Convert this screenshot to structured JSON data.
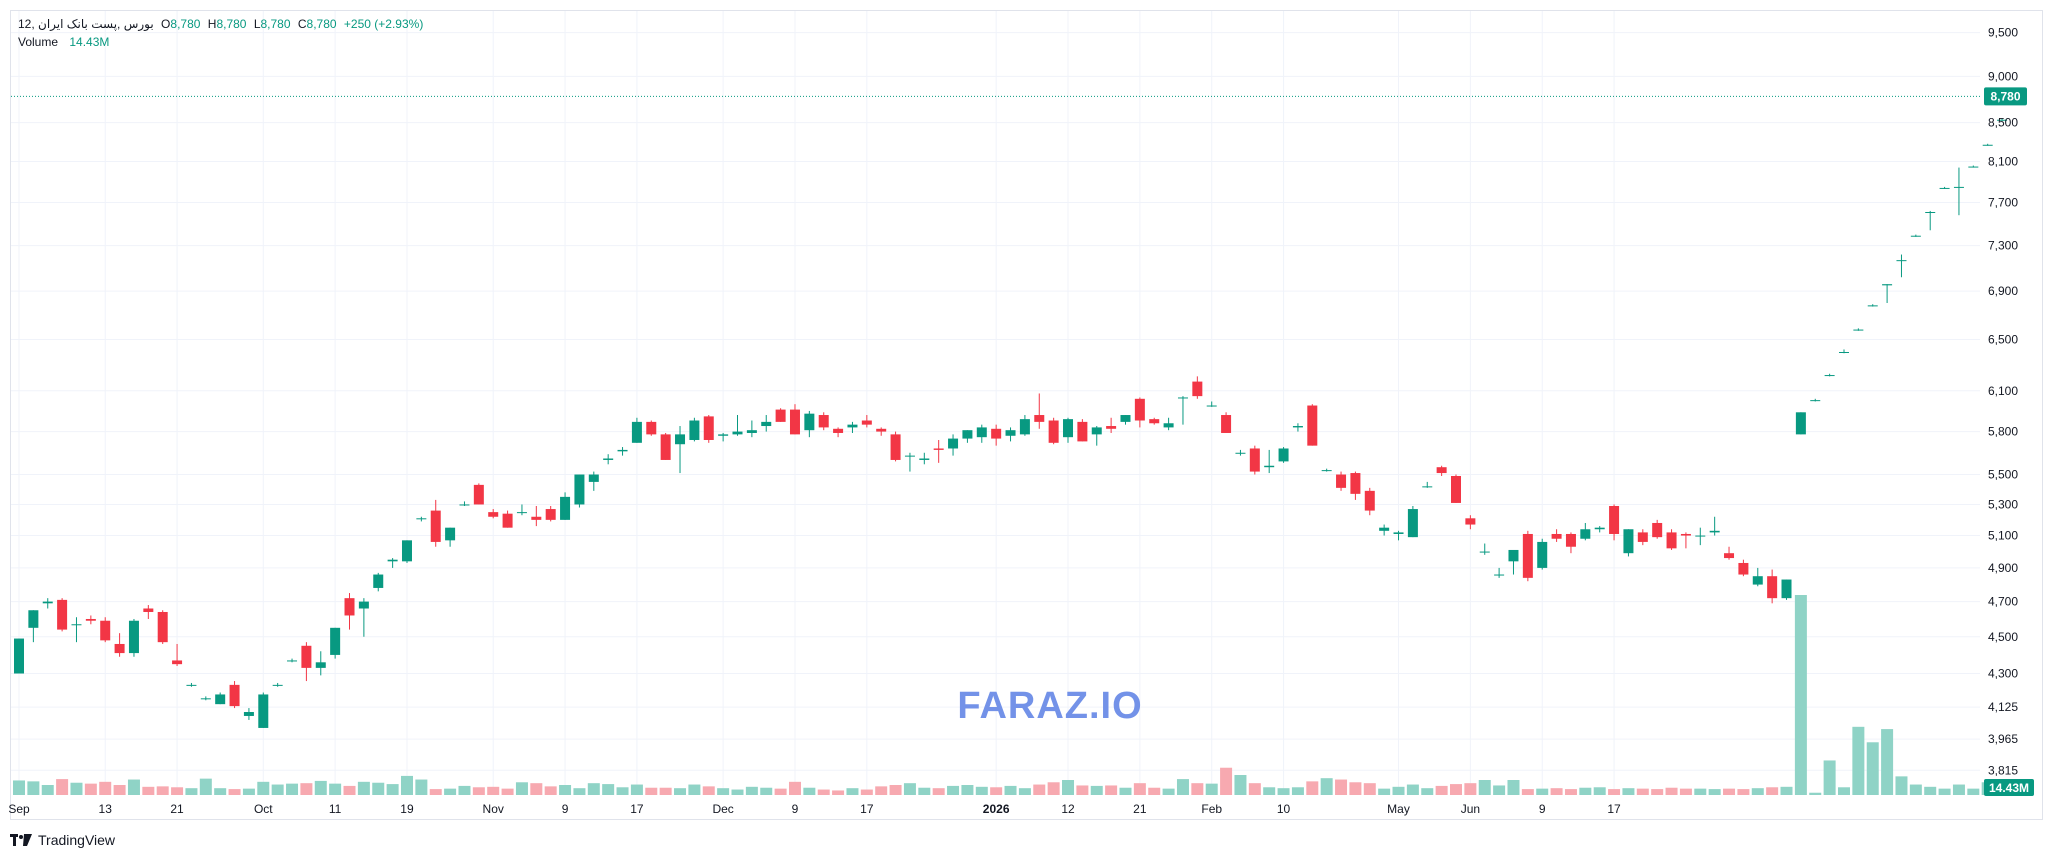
{
  "header": {
    "symbol": "بورس ,پست بانک ایران ,12",
    "open_label": "O",
    "open": "8,780",
    "high_label": "H",
    "high": "8,780",
    "low_label": "L",
    "low": "8,780",
    "close_label": "C",
    "close": "8,780",
    "change": "+250 (+2.93%)",
    "volume_label": "Volume",
    "volume_value": "14.43M"
  },
  "watermark": "FARAZ.IO",
  "brand": "TradingView",
  "colors": {
    "up": "#089981",
    "down": "#f23645",
    "vol_up": "#8fd3c6",
    "vol_down": "#f7a9b0",
    "grid": "#f0f3fa",
    "watermark": "#7392e8"
  },
  "chart_data": {
    "type": "candlestick",
    "y_scale": "log",
    "y_axis_ticks": [
      "9,500",
      "9,000",
      "8,500",
      "8,100",
      "7,700",
      "7,300",
      "6,900",
      "6,500",
      "6,100",
      "5,800",
      "5,500",
      "5,300",
      "5,100",
      "4,900",
      "4,700",
      "4,500",
      "4,300",
      "4,125",
      "3,965",
      "3,815"
    ],
    "y_axis_tick_values": [
      9500,
      9000,
      8500,
      8100,
      7700,
      7300,
      6900,
      6500,
      6100,
      5800,
      5500,
      5300,
      5100,
      4900,
      4700,
      4500,
      4300,
      4125,
      3965,
      3815
    ],
    "ylim": [
      3700,
      9650
    ],
    "x_axis_ticks": [
      "Sep",
      "13",
      "21",
      "Oct",
      "11",
      "19",
      "Nov",
      "9",
      "17",
      "Dec",
      "9",
      "17",
      "2026",
      "12",
      "21",
      "Feb",
      "10",
      "May",
      "Jun",
      "9",
      "17"
    ],
    "x_axis_tick_bars": [
      0,
      6,
      11,
      17,
      22,
      27,
      33,
      38,
      43,
      49,
      54,
      59,
      68,
      73,
      78,
      83,
      88,
      96,
      101,
      106,
      111
    ],
    "last_price_label": "8,780",
    "last_volume_label": "14.43M",
    "series": [
      {
        "o": 4300,
        "h": 4490,
        "l": 4300,
        "c": 4490,
        "v": 3.2
      },
      {
        "o": 4550,
        "h": 4650,
        "l": 4470,
        "c": 4650,
        "v": 3.0
      },
      {
        "o": 4690,
        "h": 4720,
        "l": 4660,
        "c": 4700,
        "v": 2.2
      },
      {
        "o": 4710,
        "h": 4720,
        "l": 4530,
        "c": 4540,
        "v": 3.5
      },
      {
        "o": 4570,
        "h": 4610,
        "l": 4470,
        "c": 4570,
        "v": 2.7
      },
      {
        "o": 4600,
        "h": 4620,
        "l": 4570,
        "c": 4590,
        "v": 2.5
      },
      {
        "o": 4590,
        "h": 4610,
        "l": 4470,
        "c": 4480,
        "v": 2.9
      },
      {
        "o": 4460,
        "h": 4520,
        "l": 4390,
        "c": 4410,
        "v": 2.2
      },
      {
        "o": 4410,
        "h": 4600,
        "l": 4390,
        "c": 4590,
        "v": 3.4
      },
      {
        "o": 4660,
        "h": 4680,
        "l": 4600,
        "c": 4640,
        "v": 1.8
      },
      {
        "o": 4640,
        "h": 4650,
        "l": 4460,
        "c": 4470,
        "v": 1.9
      },
      {
        "o": 4370,
        "h": 4460,
        "l": 4340,
        "c": 4350,
        "v": 1.7
      },
      {
        "o": 4240,
        "h": 4250,
        "l": 4230,
        "c": 4240,
        "v": 1.5
      },
      {
        "o": 4170,
        "h": 4180,
        "l": 4160,
        "c": 4170,
        "v": 3.6
      },
      {
        "o": 4140,
        "h": 4200,
        "l": 4140,
        "c": 4190,
        "v": 1.5
      },
      {
        "o": 4240,
        "h": 4260,
        "l": 4120,
        "c": 4130,
        "v": 1.3
      },
      {
        "o": 4080,
        "h": 4120,
        "l": 4060,
        "c": 4100,
        "v": 1.4
      },
      {
        "o": 4020,
        "h": 4200,
        "l": 4020,
        "c": 4190,
        "v": 2.9
      },
      {
        "o": 4240,
        "h": 4250,
        "l": 4230,
        "c": 4240,
        "v": 2.3
      },
      {
        "o": 4370,
        "h": 4380,
        "l": 4360,
        "c": 4370,
        "v": 2.5
      },
      {
        "o": 4450,
        "h": 4470,
        "l": 4260,
        "c": 4330,
        "v": 2.6
      },
      {
        "o": 4330,
        "h": 4420,
        "l": 4290,
        "c": 4360,
        "v": 3.1
      },
      {
        "o": 4400,
        "h": 4550,
        "l": 4380,
        "c": 4550,
        "v": 2.5
      },
      {
        "o": 4720,
        "h": 4750,
        "l": 4540,
        "c": 4620,
        "v": 2.0
      },
      {
        "o": 4660,
        "h": 4720,
        "l": 4500,
        "c": 4700,
        "v": 2.9
      },
      {
        "o": 4780,
        "h": 4870,
        "l": 4760,
        "c": 4860,
        "v": 2.7
      },
      {
        "o": 4940,
        "h": 4960,
        "l": 4900,
        "c": 4950,
        "v": 2.4
      },
      {
        "o": 4940,
        "h": 5070,
        "l": 4930,
        "c": 5070,
        "v": 4.2
      },
      {
        "o": 5210,
        "h": 5220,
        "l": 5190,
        "c": 5210,
        "v": 3.4
      },
      {
        "o": 5260,
        "h": 5330,
        "l": 5030,
        "c": 5060,
        "v": 1.3
      },
      {
        "o": 5070,
        "h": 5150,
        "l": 5030,
        "c": 5150,
        "v": 1.4
      },
      {
        "o": 5300,
        "h": 5320,
        "l": 5290,
        "c": 5300,
        "v": 2.0
      },
      {
        "o": 5430,
        "h": 5440,
        "l": 5300,
        "c": 5300,
        "v": 1.7
      },
      {
        "o": 5250,
        "h": 5270,
        "l": 5210,
        "c": 5220,
        "v": 1.8
      },
      {
        "o": 5240,
        "h": 5260,
        "l": 5150,
        "c": 5150,
        "v": 1.4
      },
      {
        "o": 5250,
        "h": 5300,
        "l": 5230,
        "c": 5250,
        "v": 2.8
      },
      {
        "o": 5220,
        "h": 5290,
        "l": 5160,
        "c": 5200,
        "v": 2.6
      },
      {
        "o": 5270,
        "h": 5290,
        "l": 5190,
        "c": 5200,
        "v": 1.9
      },
      {
        "o": 5200,
        "h": 5380,
        "l": 5200,
        "c": 5350,
        "v": 2.2
      },
      {
        "o": 5300,
        "h": 5500,
        "l": 5280,
        "c": 5500,
        "v": 1.5
      },
      {
        "o": 5450,
        "h": 5520,
        "l": 5390,
        "c": 5500,
        "v": 2.6
      },
      {
        "o": 5600,
        "h": 5640,
        "l": 5570,
        "c": 5610,
        "v": 2.4
      },
      {
        "o": 5660,
        "h": 5690,
        "l": 5630,
        "c": 5670,
        "v": 1.7
      },
      {
        "o": 5720,
        "h": 5900,
        "l": 5720,
        "c": 5870,
        "v": 2.3
      },
      {
        "o": 5870,
        "h": 5880,
        "l": 5770,
        "c": 5780,
        "v": 1.6
      },
      {
        "o": 5780,
        "h": 5790,
        "l": 5600,
        "c": 5600,
        "v": 1.6
      },
      {
        "o": 5710,
        "h": 5840,
        "l": 5510,
        "c": 5780,
        "v": 1.5
      },
      {
        "o": 5740,
        "h": 5900,
        "l": 5730,
        "c": 5880,
        "v": 2.3
      },
      {
        "o": 5910,
        "h": 5920,
        "l": 5720,
        "c": 5740,
        "v": 1.9
      },
      {
        "o": 5770,
        "h": 5790,
        "l": 5730,
        "c": 5780,
        "v": 1.5
      },
      {
        "o": 5780,
        "h": 5920,
        "l": 5770,
        "c": 5800,
        "v": 1.2
      },
      {
        "o": 5790,
        "h": 5880,
        "l": 5760,
        "c": 5810,
        "v": 1.8
      },
      {
        "o": 5840,
        "h": 5920,
        "l": 5800,
        "c": 5870,
        "v": 1.6
      },
      {
        "o": 5960,
        "h": 5970,
        "l": 5870,
        "c": 5870,
        "v": 1.4
      },
      {
        "o": 5960,
        "h": 6000,
        "l": 5780,
        "c": 5780,
        "v": 2.9
      },
      {
        "o": 5810,
        "h": 5950,
        "l": 5760,
        "c": 5930,
        "v": 1.6
      },
      {
        "o": 5920,
        "h": 5940,
        "l": 5810,
        "c": 5830,
        "v": 1.2
      },
      {
        "o": 5820,
        "h": 5830,
        "l": 5760,
        "c": 5790,
        "v": 1.0
      },
      {
        "o": 5830,
        "h": 5870,
        "l": 5790,
        "c": 5850,
        "v": 1.5
      },
      {
        "o": 5880,
        "h": 5920,
        "l": 5830,
        "c": 5850,
        "v": 1.2
      },
      {
        "o": 5820,
        "h": 5830,
        "l": 5770,
        "c": 5800,
        "v": 1.9
      },
      {
        "o": 5780,
        "h": 5800,
        "l": 5590,
        "c": 5600,
        "v": 2.2
      },
      {
        "o": 5630,
        "h": 5650,
        "l": 5520,
        "c": 5630,
        "v": 2.6
      },
      {
        "o": 5600,
        "h": 5650,
        "l": 5570,
        "c": 5610,
        "v": 1.6
      },
      {
        "o": 5680,
        "h": 5740,
        "l": 5580,
        "c": 5670,
        "v": 1.5
      },
      {
        "o": 5680,
        "h": 5780,
        "l": 5630,
        "c": 5750,
        "v": 2.0
      },
      {
        "o": 5750,
        "h": 5810,
        "l": 5720,
        "c": 5810,
        "v": 2.2
      },
      {
        "o": 5760,
        "h": 5850,
        "l": 5720,
        "c": 5830,
        "v": 1.8
      },
      {
        "o": 5820,
        "h": 5850,
        "l": 5700,
        "c": 5750,
        "v": 1.7
      },
      {
        "o": 5770,
        "h": 5830,
        "l": 5730,
        "c": 5810,
        "v": 2.0
      },
      {
        "o": 5780,
        "h": 5920,
        "l": 5770,
        "c": 5890,
        "v": 1.5
      },
      {
        "o": 5920,
        "h": 6080,
        "l": 5820,
        "c": 5870,
        "v": 2.3
      },
      {
        "o": 5880,
        "h": 5900,
        "l": 5710,
        "c": 5720,
        "v": 2.8
      },
      {
        "o": 5760,
        "h": 5900,
        "l": 5720,
        "c": 5890,
        "v": 3.3
      },
      {
        "o": 5870,
        "h": 5890,
        "l": 5730,
        "c": 5730,
        "v": 2.1
      },
      {
        "o": 5780,
        "h": 5840,
        "l": 5700,
        "c": 5830,
        "v": 2.0
      },
      {
        "o": 5840,
        "h": 5900,
        "l": 5790,
        "c": 5820,
        "v": 2.1
      },
      {
        "o": 5870,
        "h": 5920,
        "l": 5850,
        "c": 5920,
        "v": 1.6
      },
      {
        "o": 6040,
        "h": 6050,
        "l": 5830,
        "c": 5880,
        "v": 2.6
      },
      {
        "o": 5890,
        "h": 5900,
        "l": 5850,
        "c": 5860,
        "v": 1.6
      },
      {
        "o": 5830,
        "h": 5900,
        "l": 5810,
        "c": 5860,
        "v": 1.4
      },
      {
        "o": 6050,
        "h": 6060,
        "l": 5850,
        "c": 6050,
        "v": 3.5
      },
      {
        "o": 6170,
        "h": 6210,
        "l": 6040,
        "c": 6060,
        "v": 2.6
      },
      {
        "o": 5990,
        "h": 6020,
        "l": 5980,
        "c": 5990,
        "v": 2.5
      },
      {
        "o": 5920,
        "h": 5940,
        "l": 5790,
        "c": 5790,
        "v": 6.0
      },
      {
        "o": 5650,
        "h": 5670,
        "l": 5630,
        "c": 5650,
        "v": 4.4
      },
      {
        "o": 5680,
        "h": 5700,
        "l": 5500,
        "c": 5520,
        "v": 2.6
      },
      {
        "o": 5550,
        "h": 5670,
        "l": 5510,
        "c": 5560,
        "v": 1.7
      },
      {
        "o": 5590,
        "h": 5690,
        "l": 5580,
        "c": 5680,
        "v": 1.5
      },
      {
        "o": 5830,
        "h": 5860,
        "l": 5800,
        "c": 5840,
        "v": 1.7
      },
      {
        "o": 5990,
        "h": 6000,
        "l": 5700,
        "c": 5700,
        "v": 3.0
      },
      {
        "o": 5530,
        "h": 5540,
        "l": 5520,
        "c": 5530,
        "v": 3.7
      },
      {
        "o": 5500,
        "h": 5520,
        "l": 5390,
        "c": 5410,
        "v": 3.4
      },
      {
        "o": 5510,
        "h": 5520,
        "l": 5330,
        "c": 5370,
        "v": 2.8
      },
      {
        "o": 5390,
        "h": 5410,
        "l": 5230,
        "c": 5260,
        "v": 2.6
      },
      {
        "o": 5130,
        "h": 5170,
        "l": 5100,
        "c": 5150,
        "v": 1.4
      },
      {
        "o": 5110,
        "h": 5130,
        "l": 5070,
        "c": 5120,
        "v": 1.8
      },
      {
        "o": 5090,
        "h": 5290,
        "l": 5090,
        "c": 5270,
        "v": 2.3
      },
      {
        "o": 5420,
        "h": 5450,
        "l": 5410,
        "c": 5420,
        "v": 1.5
      },
      {
        "o": 5550,
        "h": 5560,
        "l": 5490,
        "c": 5510,
        "v": 2.0
      },
      {
        "o": 5490,
        "h": 5500,
        "l": 5310,
        "c": 5310,
        "v": 2.4
      },
      {
        "o": 5210,
        "h": 5230,
        "l": 5140,
        "c": 5170,
        "v": 2.6
      },
      {
        "o": 5000,
        "h": 5050,
        "l": 4980,
        "c": 5000,
        "v": 3.3
      },
      {
        "o": 4860,
        "h": 4900,
        "l": 4840,
        "c": 4860,
        "v": 2.1
      },
      {
        "o": 4940,
        "h": 5000,
        "l": 4860,
        "c": 5010,
        "v": 3.3
      },
      {
        "o": 5110,
        "h": 5130,
        "l": 4820,
        "c": 4840,
        "v": 1.3
      },
      {
        "o": 4900,
        "h": 5080,
        "l": 4890,
        "c": 5060,
        "v": 1.4
      },
      {
        "o": 5110,
        "h": 5140,
        "l": 5060,
        "c": 5080,
        "v": 1.5
      },
      {
        "o": 5110,
        "h": 5120,
        "l": 4990,
        "c": 5030,
        "v": 1.3
      },
      {
        "o": 5080,
        "h": 5180,
        "l": 5070,
        "c": 5140,
        "v": 1.6
      },
      {
        "o": 5140,
        "h": 5160,
        "l": 5120,
        "c": 5150,
        "v": 1.7
      },
      {
        "o": 5290,
        "h": 5300,
        "l": 5070,
        "c": 5110,
        "v": 1.3
      },
      {
        "o": 4990,
        "h": 5140,
        "l": 4970,
        "c": 5140,
        "v": 1.5
      },
      {
        "o": 5120,
        "h": 5140,
        "l": 5040,
        "c": 5060,
        "v": 1.4
      },
      {
        "o": 5180,
        "h": 5200,
        "l": 5080,
        "c": 5090,
        "v": 1.3
      },
      {
        "o": 5120,
        "h": 5140,
        "l": 5010,
        "c": 5020,
        "v": 1.6
      },
      {
        "o": 5110,
        "h": 5120,
        "l": 5020,
        "c": 5100,
        "v": 1.4
      },
      {
        "o": 5100,
        "h": 5150,
        "l": 5040,
        "c": 5100,
        "v": 1.4
      },
      {
        "o": 5120,
        "h": 5220,
        "l": 5100,
        "c": 5130,
        "v": 1.3
      },
      {
        "o": 4990,
        "h": 5030,
        "l": 4950,
        "c": 4960,
        "v": 1.4
      },
      {
        "o": 4930,
        "h": 4950,
        "l": 4850,
        "c": 4860,
        "v": 1.3
      },
      {
        "o": 4800,
        "h": 4900,
        "l": 4790,
        "c": 4850,
        "v": 1.5
      },
      {
        "o": 4850,
        "h": 4890,
        "l": 4690,
        "c": 4720,
        "v": 1.7
      },
      {
        "o": 4720,
        "h": 4830,
        "l": 4710,
        "c": 4830,
        "v": 1.8
      },
      {
        "o": 5780,
        "h": 5940,
        "l": 5780,
        "c": 5940,
        "v": 44.0
      },
      {
        "o": 6030,
        "h": 6040,
        "l": 6020,
        "c": 6030,
        "v": 0.5
      },
      {
        "o": 6220,
        "h": 6230,
        "l": 6210,
        "c": 6220,
        "v": 7.6
      },
      {
        "o": 6400,
        "h": 6420,
        "l": 6390,
        "c": 6400,
        "v": 1.7
      },
      {
        "o": 6580,
        "h": 6590,
        "l": 6570,
        "c": 6580,
        "v": 15.0
      },
      {
        "o": 6780,
        "h": 6790,
        "l": 6770,
        "c": 6780,
        "v": 11.6
      },
      {
        "o": 6950,
        "h": 6960,
        "l": 6800,
        "c": 6960,
        "v": 14.5
      },
      {
        "o": 7170,
        "h": 7220,
        "l": 7020,
        "c": 7170,
        "v": 4.1
      },
      {
        "o": 7390,
        "h": 7400,
        "l": 7380,
        "c": 7390,
        "v": 2.3
      },
      {
        "o": 7610,
        "h": 7620,
        "l": 7440,
        "c": 7610,
        "v": 1.8
      },
      {
        "o": 7840,
        "h": 7850,
        "l": 7830,
        "c": 7840,
        "v": 1.4
      },
      {
        "o": 7850,
        "h": 8040,
        "l": 7580,
        "c": 7850,
        "v": 2.3
      },
      {
        "o": 8050,
        "h": 8060,
        "l": 8040,
        "c": 8050,
        "v": 1.4
      },
      {
        "o": 8270,
        "h": 8280,
        "l": 8260,
        "c": 8270,
        "v": 2.8
      },
      {
        "o": 8530,
        "h": 8540,
        "l": 8520,
        "c": 8530,
        "v": 1.2
      },
      {
        "o": 8780,
        "h": 8780,
        "l": 8780,
        "c": 8780,
        "v": 1.4
      }
    ]
  }
}
